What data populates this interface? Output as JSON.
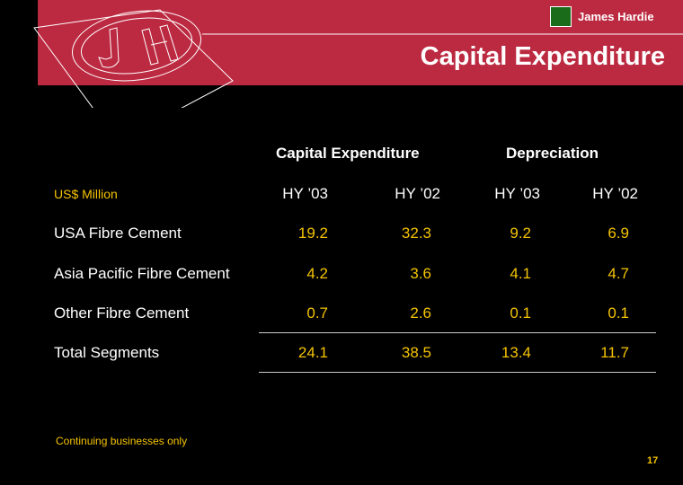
{
  "header": {
    "brand": "James Hardie",
    "title": "Capital Expenditure"
  },
  "table": {
    "group_headers": [
      "Capital Expenditure",
      "Depreciation"
    ],
    "unit_label": "US$ Million",
    "columns": [
      "HY ’03",
      "HY ’02",
      "HY ’03",
      "HY ’02"
    ],
    "rows": [
      {
        "label": "USA Fibre Cement",
        "values": [
          "19.2",
          "32.3",
          "9.2",
          "6.9"
        ]
      },
      {
        "label": "Asia Pacific Fibre Cement",
        "values": [
          "4.2",
          "3.6",
          "4.1",
          "4.7"
        ]
      },
      {
        "label": "Other Fibre Cement",
        "values": [
          "0.7",
          "2.6",
          "0.1",
          "0.1"
        ]
      },
      {
        "label": "Total Segments",
        "values": [
          "24.1",
          "38.5",
          "13.4",
          "11.7"
        ]
      }
    ]
  },
  "footnote": "Continuing businesses only",
  "page_number": "17",
  "colors": {
    "band": "#bc2a41",
    "accent": "#f5c400"
  }
}
